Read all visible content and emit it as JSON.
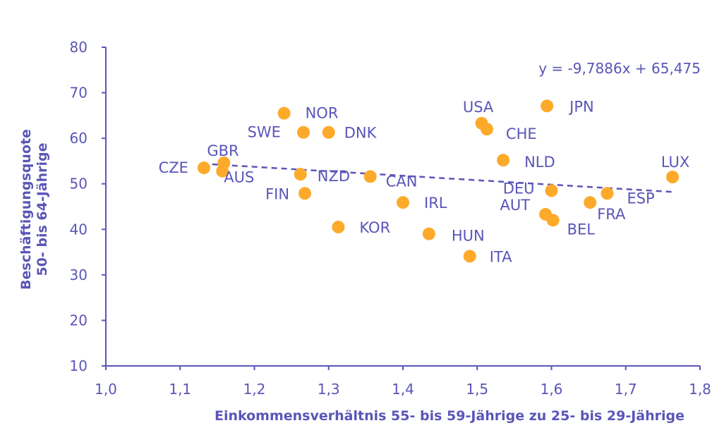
{
  "chart_data": {
    "type": "scatter",
    "title": "",
    "xlabel": "Einkommensverhältnis 55- bis 59-Jährige zu 25- bis 29-Jährige",
    "ylabel": [
      "Beschäftigungsquote",
      "50- bis 64-Jährige"
    ],
    "xlim": [
      1.0,
      1.8
    ],
    "ylim": [
      10,
      80
    ],
    "xticks": [
      1.0,
      1.1,
      1.2,
      1.3,
      1.4,
      1.5,
      1.6,
      1.7,
      1.8
    ],
    "yticks": [
      10,
      20,
      30,
      40,
      50,
      60,
      70,
      80
    ],
    "xtick_labels": [
      "1,0",
      "1,1",
      "1,2",
      "1,3",
      "1,4",
      "1,5",
      "1,6",
      "1,7",
      "1,8"
    ],
    "ytick_labels": [
      "10",
      "20",
      "30",
      "40",
      "50",
      "60",
      "70",
      "80"
    ],
    "grid": false,
    "points": [
      {
        "label": "CZE",
        "x": 1.132,
        "y": 53.5
      },
      {
        "label": "GBR",
        "x": 1.159,
        "y": 54.6
      },
      {
        "label": "AUS",
        "x": 1.157,
        "y": 52.8
      },
      {
        "label": "NOR",
        "x": 1.24,
        "y": 65.5
      },
      {
        "label": "SWE",
        "x": 1.266,
        "y": 61.3
      },
      {
        "label": "DNK",
        "x": 1.3,
        "y": 61.3
      },
      {
        "label": "NZD",
        "x": 1.262,
        "y": 52.1
      },
      {
        "label": "FIN",
        "x": 1.268,
        "y": 47.9
      },
      {
        "label": "KOR",
        "x": 1.313,
        "y": 40.5
      },
      {
        "label": "CAN",
        "x": 1.356,
        "y": 51.6
      },
      {
        "label": "IRL",
        "x": 1.4,
        "y": 45.9
      },
      {
        "label": "HUN",
        "x": 1.435,
        "y": 39.0
      },
      {
        "label": "ITA",
        "x": 1.49,
        "y": 34.1
      },
      {
        "label": "USA",
        "x": 1.506,
        "y": 63.3
      },
      {
        "label": "CHE",
        "x": 1.513,
        "y": 62.0
      },
      {
        "label": "NLD",
        "x": 1.535,
        "y": 55.2
      },
      {
        "label": "JPN",
        "x": 1.594,
        "y": 67.1
      },
      {
        "label": "DEU",
        "x": 1.6,
        "y": 48.5
      },
      {
        "label": "AUT",
        "x": 1.592,
        "y": 43.3
      },
      {
        "label": "BEL",
        "x": 1.602,
        "y": 42.0
      },
      {
        "label": "FRA",
        "x": 1.652,
        "y": 45.9
      },
      {
        "label": "ESP",
        "x": 1.675,
        "y": 47.9
      },
      {
        "label": "LUX",
        "x": 1.763,
        "y": 51.5
      }
    ],
    "trendline": {
      "equation": "y = -9,7886x + 65,475",
      "slope": -9.7886,
      "intercept": 65.475,
      "x_range": [
        1.13,
        1.765
      ],
      "style": "dashed"
    },
    "colors": {
      "points": "#fdaa2b",
      "text": "#5b55b8",
      "axis": "#5b55b8",
      "trendline": "#5b55b8"
    }
  }
}
